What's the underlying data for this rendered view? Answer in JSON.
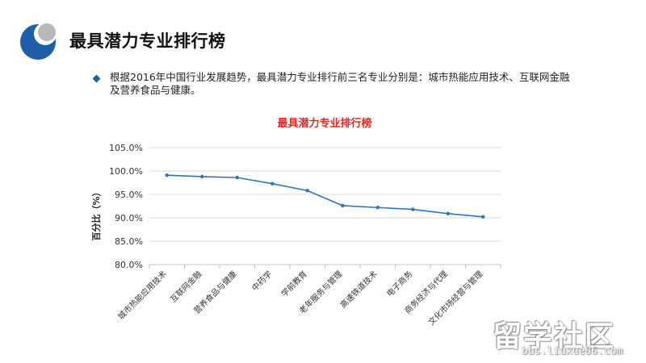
{
  "slide": {
    "title": "最具潜力专业排行榜",
    "bullet": "根据2016年中国行业发展趋势，最具潜力专业排行前三名专业分别是：城市热能应用技术、互联网金融及营养食品与健康。"
  },
  "watermark": {
    "brand": "留学社区",
    "url": "bbs.liuxue86.com"
  },
  "colors": {
    "title_red": "#e8251f",
    "line_blue": "#2e75b6",
    "bullet_blue": "#1f5fa8",
    "logo_blue": "#1f5fa8"
  },
  "chart_data": {
    "type": "line",
    "title": "最具潜力专业排行榜",
    "xlabel": "",
    "ylabel": "百分比（%）",
    "ylim": [
      80,
      105
    ],
    "yticks": [
      "80.0%",
      "85.0%",
      "90.0%",
      "95.0%",
      "100.0%",
      "105.0%"
    ],
    "ytick_values": [
      80,
      85,
      90,
      95,
      100,
      105
    ],
    "grid": true,
    "categories": [
      "城市热能应用技术",
      "互联网金融",
      "营养食品与健康",
      "中药学",
      "学前教育",
      "老年服务与管理",
      "高速铁道技术",
      "电子商务",
      "商务经济与代理",
      "文化市场经营与管理"
    ],
    "values": [
      99.1,
      98.8,
      98.6,
      97.3,
      95.8,
      92.6,
      92.2,
      91.8,
      90.9,
      90.2
    ]
  }
}
